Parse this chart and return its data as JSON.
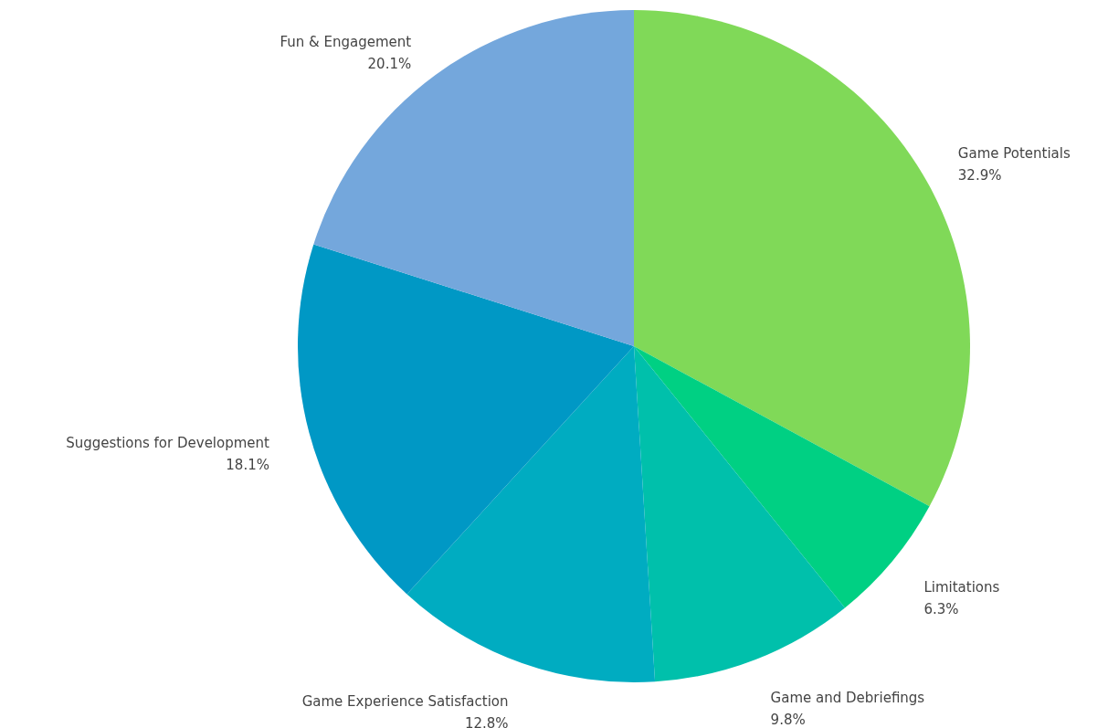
{
  "chart_data": {
    "type": "pie",
    "categories": [
      "Game Potentials",
      "Limitations",
      "Game and Debriefings",
      "Game Experience Satisfaction",
      "Suggestions for Development",
      "Fun & Engagement"
    ],
    "values": [
      32.9,
      6.3,
      9.8,
      12.8,
      18.1,
      20.1
    ],
    "value_labels": [
      "32.9%",
      "6.3%",
      "9.8%",
      "12.8%",
      "18.1%",
      "20.1%"
    ],
    "colors": [
      "#80d958",
      "#00d083",
      "#00c0ab",
      "#00acc1",
      "#0098c5",
      "#74a7dc"
    ]
  }
}
